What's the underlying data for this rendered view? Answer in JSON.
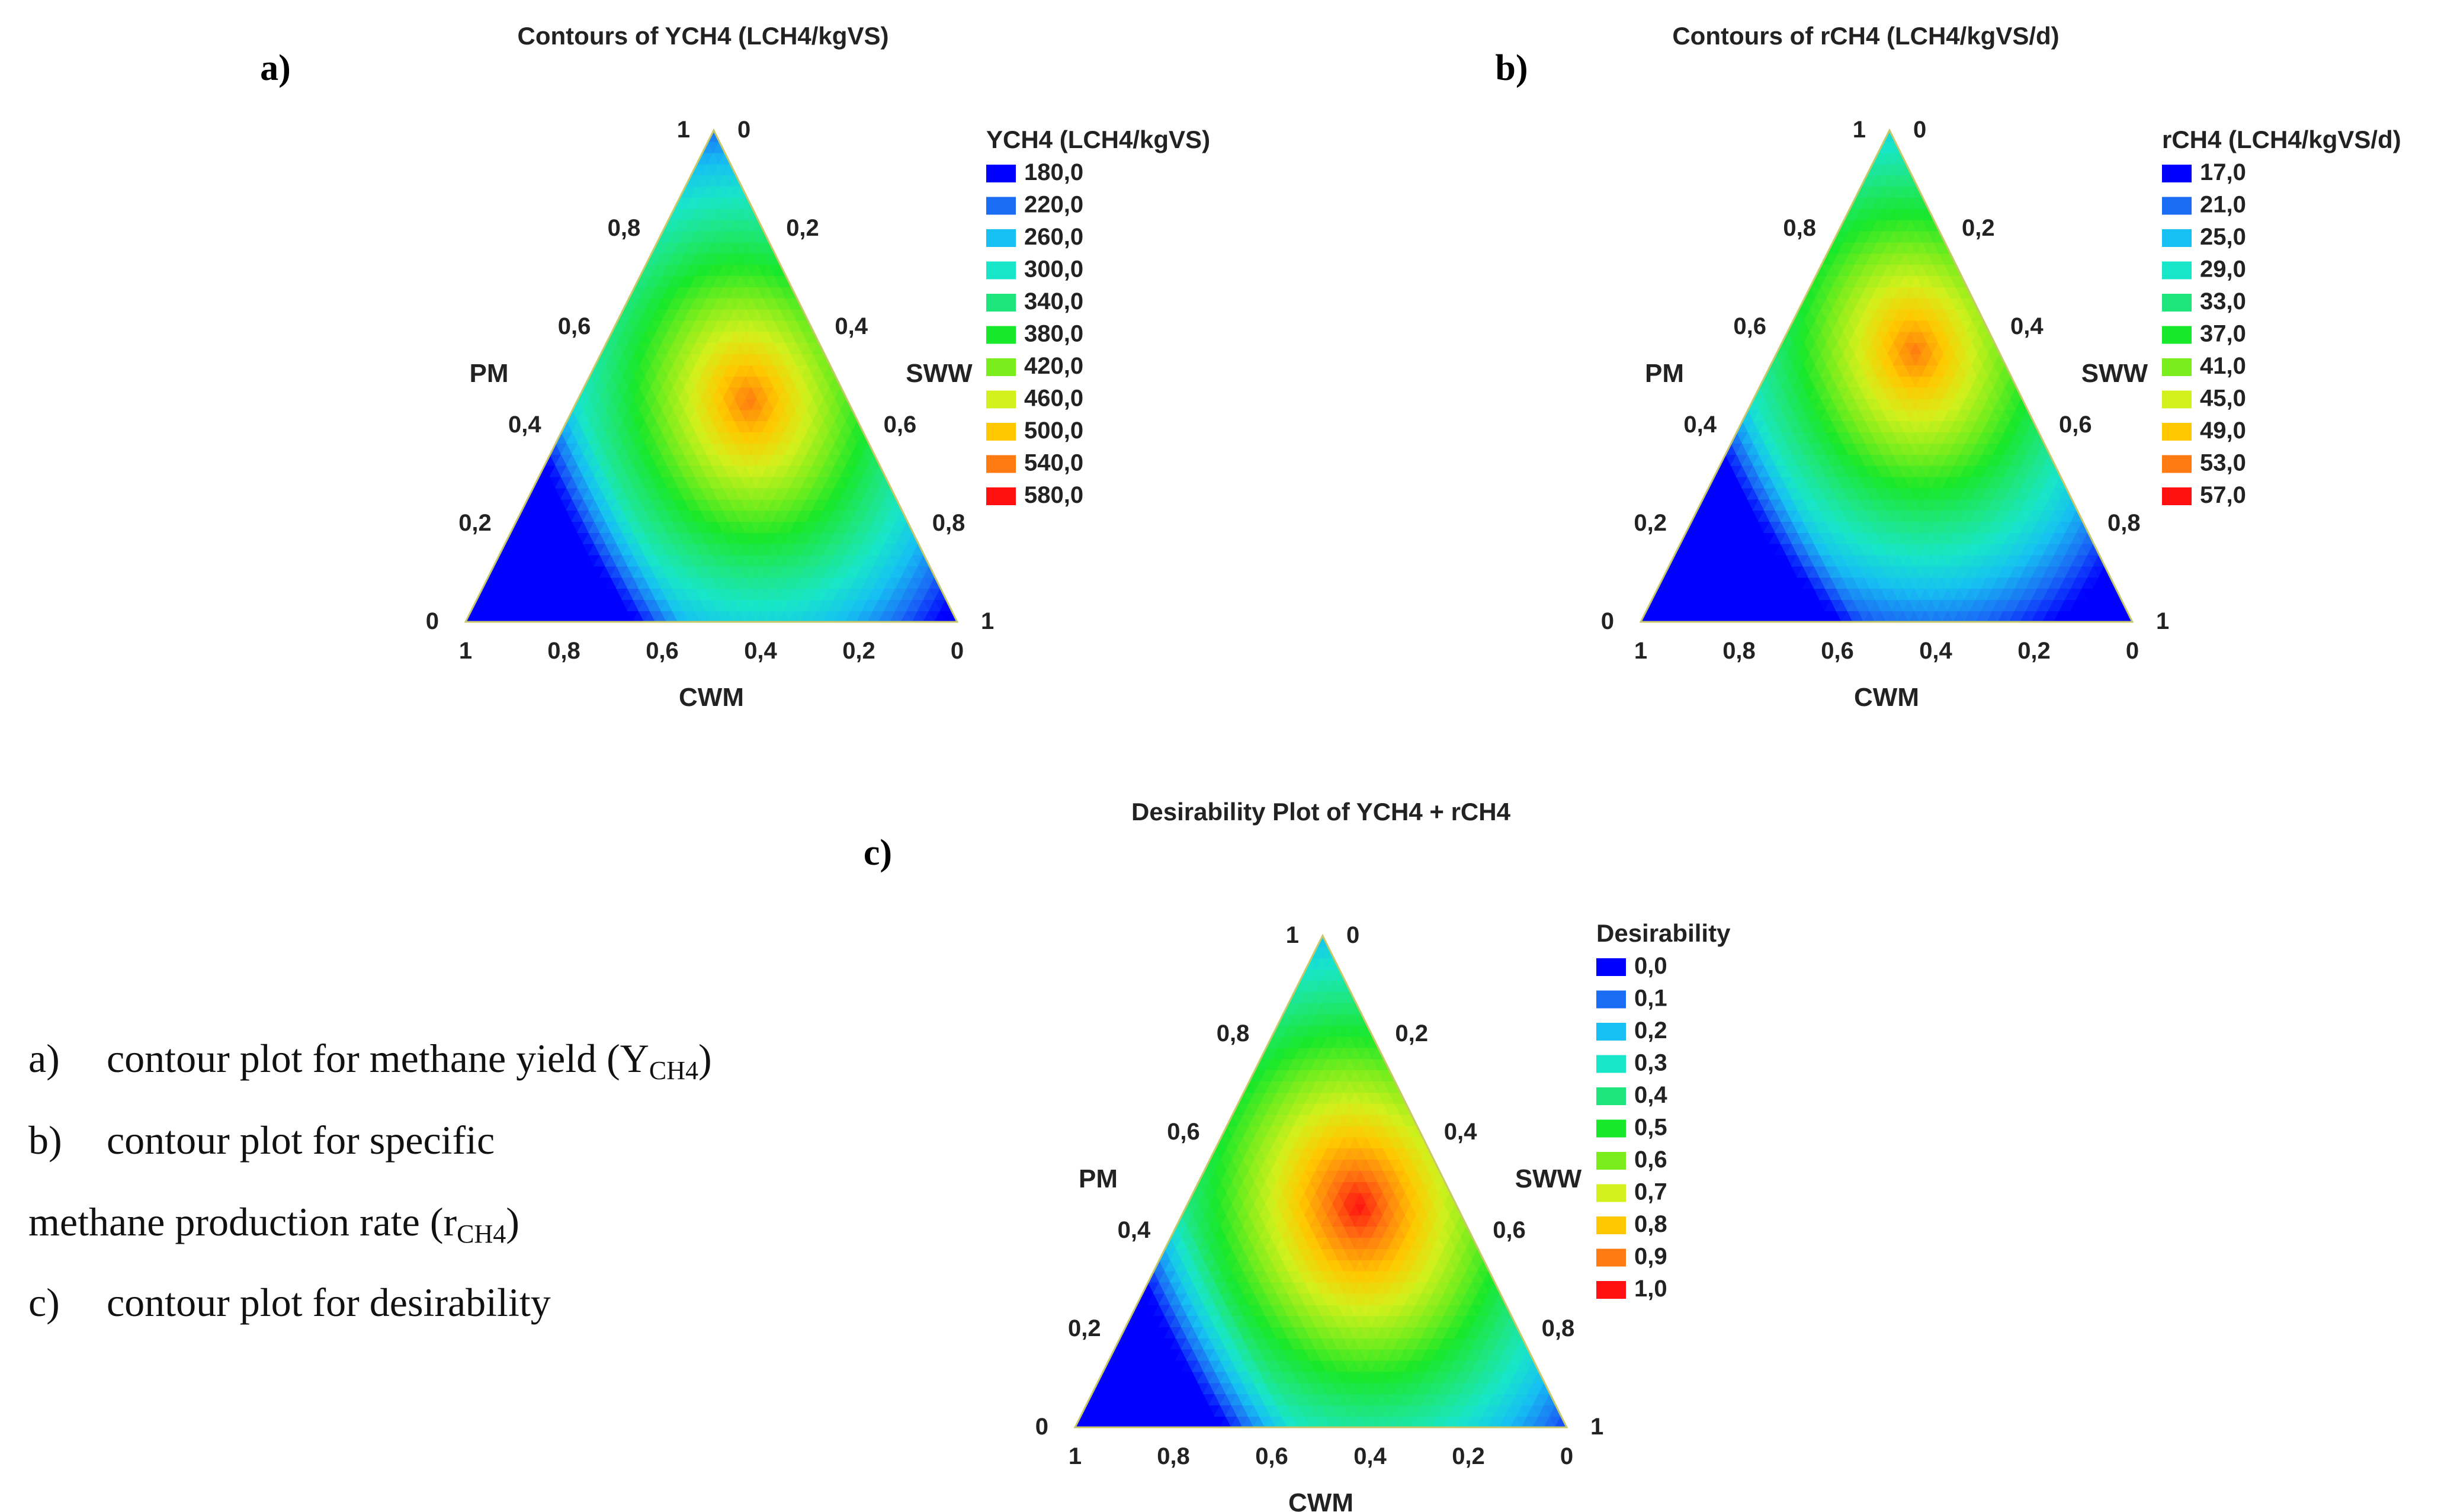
{
  "chart_data": [
    {
      "type": "ternary-contour",
      "panel_label": "a)",
      "title": "Contours of YCH4 (LCH4/kgVS)",
      "axes": {
        "left": "PM",
        "right": "SWW",
        "bottom": "CWM"
      },
      "ticks": {
        "left": [
          "0",
          "0,2",
          "0,4",
          "0,6",
          "0,8",
          "1"
        ],
        "right": [
          "0",
          "0,2",
          "0,4",
          "0,6",
          "0,8",
          "1"
        ],
        "bottom": [
          "1",
          "0,8",
          "0,6",
          "0,4",
          "0,2",
          "0"
        ]
      },
      "legend_title": "YCH4 (LCH4/kgVS)",
      "levels": [
        "180,0",
        "220,0",
        "260,0",
        "300,0",
        "340,0",
        "380,0",
        "420,0",
        "460,0",
        "500,0",
        "540,0",
        "580,0"
      ],
      "level_colors": [
        "#0000ff",
        "#1a6cf5",
        "#16c0f2",
        "#18e6c8",
        "#1ee67c",
        "#18e82a",
        "#7ced1c",
        "#d2f01c",
        "#ffc800",
        "#ff7a10",
        "#ff1010"
      ],
      "peak_level_index": 9,
      "peak_composition": {
        "PM": 0.45,
        "SWW": 0.35,
        "CWM": 0.2
      }
    },
    {
      "type": "ternary-contour",
      "panel_label": "b)",
      "title": "Contours of rCH4 (LCH4/kgVS/d)",
      "axes": {
        "left": "PM",
        "right": "SWW",
        "bottom": "CWM"
      },
      "ticks": {
        "left": [
          "0",
          "0,2",
          "0,4",
          "0,6",
          "0,8",
          "1"
        ],
        "right": [
          "0",
          "0,2",
          "0,4",
          "0,6",
          "0,8",
          "1"
        ],
        "bottom": [
          "1",
          "0,8",
          "0,6",
          "0,4",
          "0,2",
          "0"
        ]
      },
      "legend_title": "rCH4 (LCH4/kgVS/d)",
      "levels": [
        "17,0",
        "21,0",
        "25,0",
        "29,0",
        "33,0",
        "37,0",
        "41,0",
        "45,0",
        "49,0",
        "53,0",
        "57,0"
      ],
      "level_colors": [
        "#0000ff",
        "#1a6cf5",
        "#16c0f2",
        "#18e6c8",
        "#1ee67c",
        "#18e82a",
        "#7ced1c",
        "#d2f01c",
        "#ffc800",
        "#ff7a10",
        "#ff1010"
      ],
      "peak_level_index": 9,
      "peak_composition": {
        "PM": 0.55,
        "SWW": 0.28,
        "CWM": 0.17
      }
    },
    {
      "type": "ternary-contour",
      "panel_label": "c)",
      "title": "Desirability Plot of YCH4 + rCH4",
      "axes": {
        "left": "PM",
        "right": "SWW",
        "bottom": "CWM"
      },
      "ticks": {
        "left": [
          "0",
          "0,2",
          "0,4",
          "0,6",
          "0,8",
          "1"
        ],
        "right": [
          "0",
          "0,2",
          "0,4",
          "0,6",
          "0,8",
          "1"
        ],
        "bottom": [
          "1",
          "0,8",
          "0,6",
          "0,4",
          "0,2",
          "0"
        ]
      },
      "legend_title": "Desirability",
      "levels": [
        "0,0",
        "0,1",
        "0,2",
        "0,3",
        "0,4",
        "0,5",
        "0,6",
        "0,7",
        "0,8",
        "0,9",
        "1,0"
      ],
      "level_colors": [
        "#0000ff",
        "#1a6cf5",
        "#16c0f2",
        "#18e6c8",
        "#1ee67c",
        "#18e82a",
        "#7ced1c",
        "#d2f01c",
        "#ffc800",
        "#ff7a10",
        "#ff1010"
      ],
      "peak_level_index": 10,
      "peak_composition": {
        "PM": 0.45,
        "SWW": 0.35,
        "CWM": 0.2
      }
    }
  ],
  "caption": [
    {
      "prefix": "a)",
      "text": "contour plot for methane yield (Y",
      "sub": "CH4",
      "suffix": ")"
    },
    {
      "prefix": "b)",
      "text": "contour plot for specific",
      "sub": "",
      "suffix": ""
    },
    {
      "prefix": "",
      "text": "methane production rate (r",
      "sub": "CH4",
      "suffix": ")"
    },
    {
      "prefix": "c)",
      "text": "contour plot for desirability",
      "sub": "",
      "suffix": ""
    }
  ]
}
